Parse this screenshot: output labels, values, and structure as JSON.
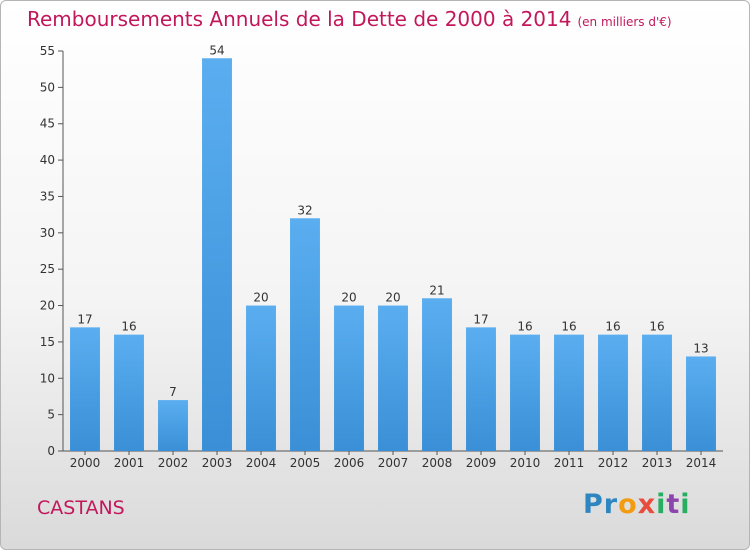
{
  "chart_data": {
    "type": "bar",
    "title": "Remboursements Annuels de la Dette de 2000 à 2014",
    "subtitle": "(en milliers d'€)",
    "categories": [
      "2000",
      "2001",
      "2002",
      "2003",
      "2004",
      "2005",
      "2006",
      "2007",
      "2008",
      "2009",
      "2010",
      "2011",
      "2012",
      "2013",
      "2014"
    ],
    "values": [
      17,
      16,
      7,
      54,
      20,
      32,
      20,
      20,
      21,
      17,
      16,
      16,
      16,
      16,
      13
    ],
    "ylim": [
      0,
      55
    ],
    "yticks": [
      0,
      5,
      10,
      15,
      20,
      25,
      30,
      35,
      40,
      45,
      50,
      55
    ],
    "grid": false,
    "bar_color": "#3a8fd6",
    "data_labels": true
  },
  "place_name": "CASTANS",
  "brand": {
    "letters": [
      "P",
      "r",
      "o",
      "x",
      "i",
      "t",
      "i"
    ],
    "colors": [
      "#2e86c1",
      "#2e86c1",
      "#f39c12",
      "#e74c3c",
      "#27ae60",
      "#8e44ad",
      "#27ae60"
    ]
  },
  "accent_color": "#c2185b"
}
